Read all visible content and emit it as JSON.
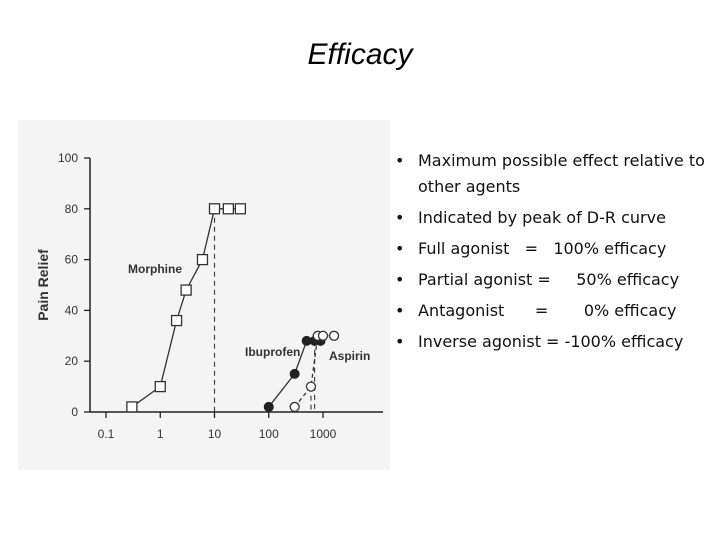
{
  "slide": {
    "title": "Efficacy"
  },
  "bullets": [
    "Maximum possible effect relative to other agents",
    "Indicated by peak of D-R curve",
    "Full agonist   =   100% efficacy",
    "Partial agonist =     50% efficacy",
    "Antagonist      =       0% efficacy",
    "Inverse agonist = -100% efficacy"
  ],
  "chart_data": {
    "type": "scatter",
    "title": "",
    "xlabel": "",
    "ylabel": "Pain Relief",
    "x_scale": "log",
    "xlim": [
      0.1,
      2000
    ],
    "ylim": [
      0,
      100
    ],
    "x_ticks": [
      "0.1",
      "1",
      "10",
      "100",
      "1000"
    ],
    "y_ticks": [
      "0",
      "20",
      "40",
      "60",
      "80",
      "100"
    ],
    "grid": false,
    "series": [
      {
        "name": "Morphine",
        "marker": "open-square",
        "x": [
          0.3,
          1,
          2,
          3,
          6,
          10,
          18,
          30
        ],
        "y": [
          2,
          10,
          36,
          48,
          60,
          80,
          80,
          80
        ],
        "drop_line_x": 10
      },
      {
        "name": "Ibuprofen",
        "marker": "filled-circle",
        "x": [
          100,
          300,
          500,
          700,
          900
        ],
        "y": [
          2,
          15,
          28,
          28,
          28
        ],
        "drop_line_x": 700
      },
      {
        "name": "Aspirin",
        "marker": "open-circle",
        "x": [
          300,
          600,
          800,
          1000,
          1600
        ],
        "y": [
          2,
          10,
          30,
          30,
          30
        ],
        "drop_line_x": 600
      }
    ]
  }
}
